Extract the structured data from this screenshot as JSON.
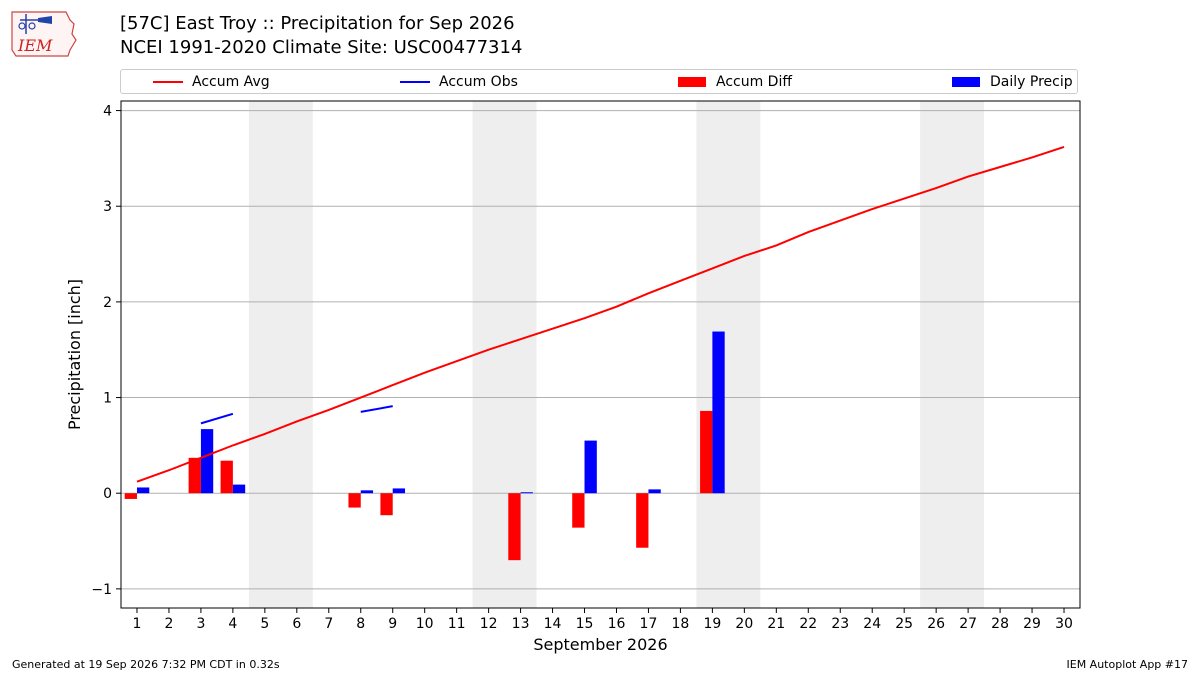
{
  "header": {
    "title_line1": "[57C] East Troy :: Precipitation for Sep 2026",
    "title_line2": "NCEI 1991-2020 Climate Site: USC00477314",
    "logo_text": "IEM"
  },
  "footer": {
    "generated": "Generated at 19 Sep 2026 7:32 PM CDT in 0.32s",
    "app": "IEM Autoplot App #17"
  },
  "colors": {
    "accum_avg": "#ff0000",
    "accum_obs": "#0000ff",
    "accum_diff": "#ff0000",
    "daily_precip": "#0000ff",
    "weekend": "#eeeeee",
    "grid": "#b0b0b0"
  },
  "chart_data": {
    "type": "bar",
    "xlabel": "September 2026",
    "ylabel": "Precipitation [inch]",
    "xlim": [
      0.5,
      30.5
    ],
    "ylim": [
      -1.2,
      4.1
    ],
    "yticks": [
      -1,
      0,
      1,
      2,
      3,
      4
    ],
    "ytick_labels": [
      "−1",
      "0",
      "1",
      "2",
      "3",
      "4"
    ],
    "xticks": [
      1,
      2,
      3,
      4,
      5,
      6,
      7,
      8,
      9,
      10,
      11,
      12,
      13,
      14,
      15,
      16,
      17,
      18,
      19,
      20,
      21,
      22,
      23,
      24,
      25,
      26,
      27,
      28,
      29,
      30
    ],
    "grid": "horizontal",
    "legend_position": "top",
    "legend": [
      "Accum Avg",
      "Accum Obs",
      "Accum Diff",
      "Daily Precip"
    ],
    "weekend_spans": [
      [
        4.5,
        6.5
      ],
      [
        11.5,
        13.5
      ],
      [
        18.5,
        20.5
      ],
      [
        25.5,
        27.5
      ]
    ],
    "accum_avg": {
      "name": "Accum Avg",
      "x": [
        1,
        2,
        3,
        4,
        5,
        6,
        7,
        8,
        9,
        10,
        11,
        12,
        13,
        14,
        15,
        16,
        17,
        18,
        19,
        20,
        21,
        22,
        23,
        24,
        25,
        26,
        27,
        28,
        29,
        30
      ],
      "y": [
        0.12,
        0.24,
        0.37,
        0.5,
        0.62,
        0.75,
        0.87,
        1.0,
        1.13,
        1.26,
        1.38,
        1.5,
        1.61,
        1.72,
        1.83,
        1.95,
        2.09,
        2.22,
        2.35,
        2.48,
        2.59,
        2.73,
        2.85,
        2.97,
        3.08,
        3.19,
        3.31,
        3.41,
        3.51,
        3.62
      ]
    },
    "accum_obs_segments": [
      {
        "x": [
          3,
          4
        ],
        "y": [
          0.73,
          0.83
        ]
      },
      {
        "x": [
          8,
          9
        ],
        "y": [
          0.85,
          0.91
        ]
      }
    ],
    "accum_diff": {
      "name": "Accum Diff",
      "x": [
        1,
        3,
        4,
        8,
        9,
        13,
        15,
        17,
        19
      ],
      "y": [
        -0.06,
        0.37,
        0.34,
        -0.15,
        -0.23,
        -0.7,
        -0.36,
        -0.57,
        0.86
      ]
    },
    "daily_precip": {
      "name": "Daily Precip",
      "x": [
        1,
        3,
        4,
        8,
        9,
        13,
        15,
        17,
        19
      ],
      "y": [
        0.06,
        0.67,
        0.09,
        0.03,
        0.05,
        0.01,
        0.55,
        0.04,
        1.69
      ]
    }
  }
}
